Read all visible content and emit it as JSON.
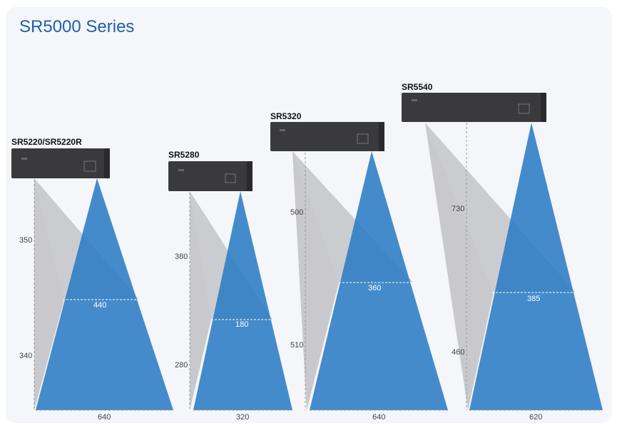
{
  "title": "SR5000 Series",
  "colors": {
    "title": "#1f5fa8",
    "beam_blue": "#2b7cc4",
    "beam_gray": "#a9a9ae",
    "device": "#3a3a3d"
  },
  "models": [
    {
      "name": "SR5220/SR5220R",
      "upper_distance": "350",
      "lower_distance": "340",
      "mid_width": "440",
      "base_width": "640"
    },
    {
      "name": "SR5280",
      "upper_distance": "380",
      "lower_distance": "280",
      "mid_width": "180",
      "base_width": "320"
    },
    {
      "name": "SR5320",
      "upper_distance": "500",
      "lower_distance": "510",
      "mid_width": "360",
      "base_width": "640"
    },
    {
      "name": "SR5540",
      "upper_distance": "730",
      "lower_distance": "460",
      "mid_width": "385",
      "base_width": "620"
    }
  ]
}
